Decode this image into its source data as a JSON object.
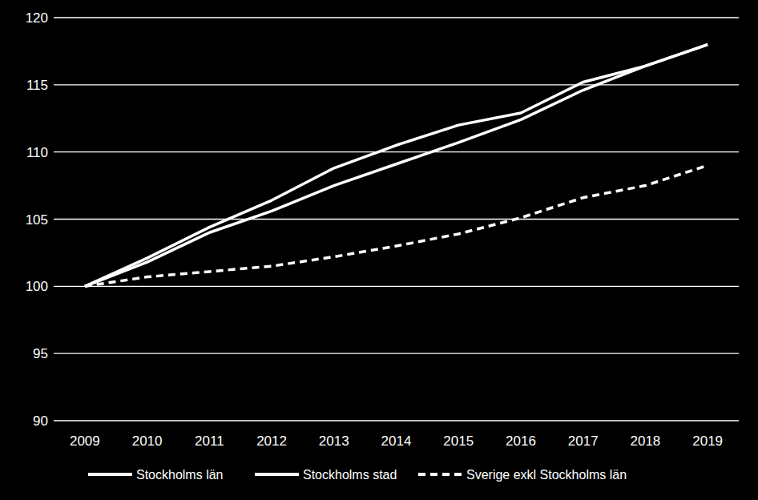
{
  "chart_data": {
    "type": "line",
    "categories": [
      "2009",
      "2010",
      "2011",
      "2012",
      "2013",
      "2014",
      "2015",
      "2016",
      "2017",
      "2018",
      "2019"
    ],
    "series": [
      {
        "name": "Stockholms län",
        "color": "#ffffff",
        "line_style": "solid",
        "values": [
          100,
          102.1,
          104.4,
          106.4,
          108.8,
          110.5,
          112.0,
          112.9,
          115.2,
          116.4,
          118.0
        ]
      },
      {
        "name": "Stockholms stad",
        "color": "#ffffff",
        "line_style": "solid",
        "values": [
          100,
          101.8,
          104.0,
          105.6,
          107.5,
          109.1,
          110.7,
          112.4,
          114.6,
          116.4,
          118.0
        ]
      },
      {
        "name": "Sverige exkl Stockholms län",
        "color": "#ffffff",
        "line_style": "dashed",
        "values": [
          100,
          100.7,
          101.1,
          101.5,
          102.2,
          103.0,
          103.9,
          105.1,
          106.6,
          107.5,
          109.0
        ]
      }
    ],
    "ylim": [
      90,
      120
    ],
    "yticks": [
      90,
      95,
      100,
      105,
      110,
      115,
      120
    ],
    "grid": true,
    "legend": "bottom"
  }
}
